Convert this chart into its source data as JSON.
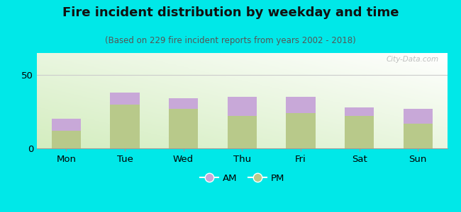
{
  "title": "Fire incident distribution by weekday and time",
  "subtitle": "(Based on 229 fire incident reports from years 2002 - 2018)",
  "categories": [
    "Mon",
    "Tue",
    "Wed",
    "Thu",
    "Fri",
    "Sat",
    "Sun"
  ],
  "pm_values": [
    12,
    30,
    27,
    22,
    24,
    22,
    17
  ],
  "am_values": [
    8,
    8,
    7,
    13,
    11,
    6,
    10
  ],
  "pm_color": "#b8c98a",
  "am_color": "#c8a8d8",
  "background_color": "#00e8e8",
  "ylim": [
    0,
    65
  ],
  "yticks": [
    0,
    50
  ],
  "title_fontsize": 13,
  "subtitle_fontsize": 8.5,
  "tick_fontsize": 9.5,
  "legend_fontsize": 9.5,
  "watermark": "City-Data.com"
}
